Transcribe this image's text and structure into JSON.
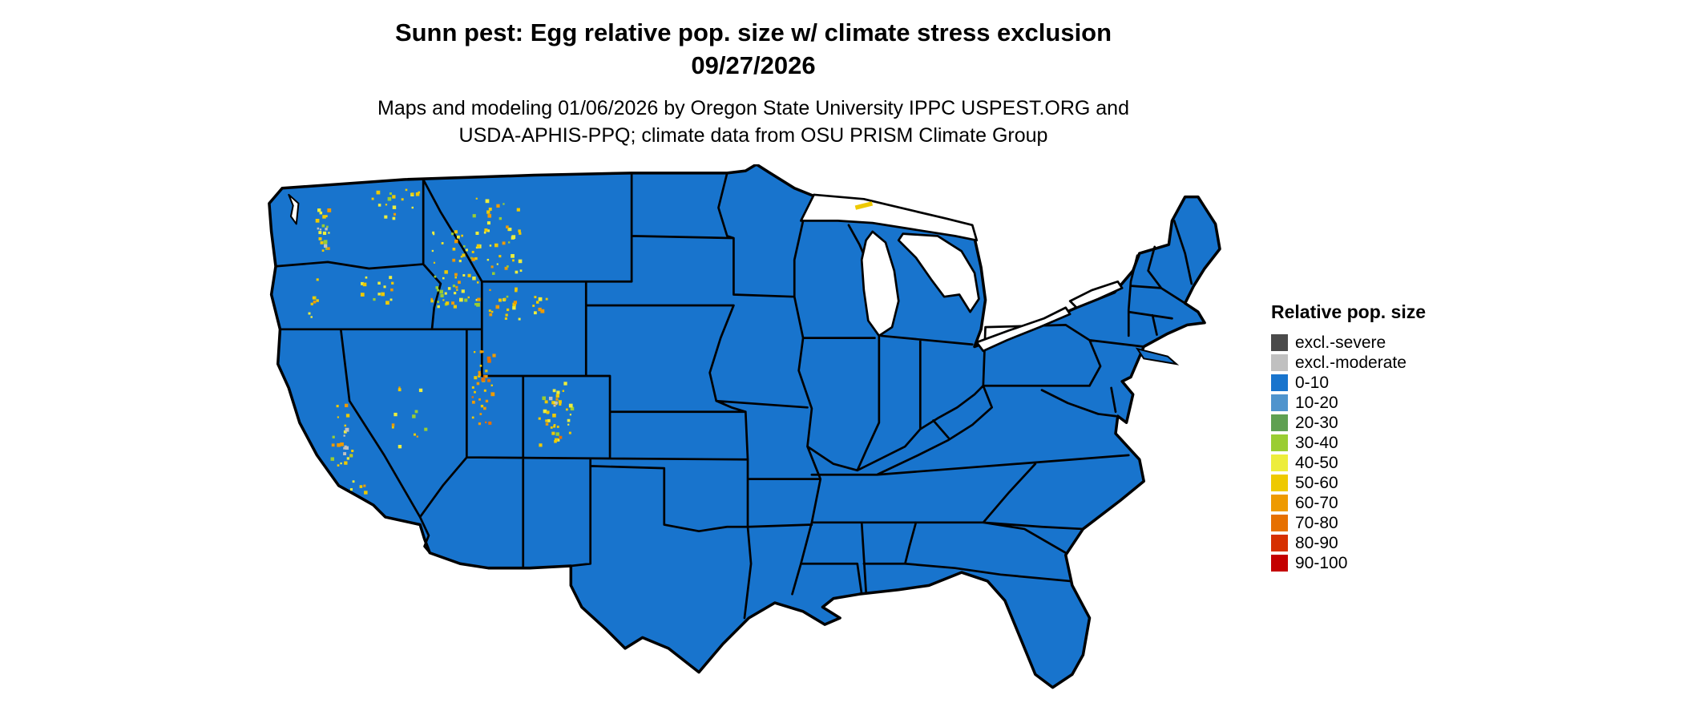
{
  "title": {
    "line1": "Sunn pest: Egg relative pop. size w/ climate stress exclusion",
    "line2": "09/27/2026"
  },
  "subtitle": {
    "line1": "Maps and modeling 01/06/2026 by Oregon State University IPPC USPEST.ORG and",
    "line2": "USDA-APHIS-PPQ; climate data from OSU PRISM Climate Group"
  },
  "legend": {
    "title": "Relative pop. size",
    "items": [
      {
        "label": "excl.-severe",
        "color": "#4a4a4a"
      },
      {
        "label": "excl.-moderate",
        "color": "#c0c0c0"
      },
      {
        "label": "0-10",
        "color": "#1874CD"
      },
      {
        "label": "10-20",
        "color": "#4F94CD"
      },
      {
        "label": "20-30",
        "color": "#5FA052"
      },
      {
        "label": "30-40",
        "color": "#9ACD32"
      },
      {
        "label": "40-50",
        "color": "#EDED3C"
      },
      {
        "label": "50-60",
        "color": "#EEC900"
      },
      {
        "label": "60-70",
        "color": "#EE9A00"
      },
      {
        "label": "70-80",
        "color": "#E67000"
      },
      {
        "label": "80-90",
        "color": "#D63000"
      },
      {
        "label": "90-100",
        "color": "#C40000"
      }
    ]
  },
  "map": {
    "land_color": "#1874CD",
    "water_color": "#FFFFFF",
    "border_color": "#000000",
    "excl_moderate_color": "#c0c0c0",
    "speckle_palette": [
      "#EEC900",
      "#EDED3C",
      "#EE9A00",
      "#9ACD32",
      "#E67000"
    ]
  }
}
